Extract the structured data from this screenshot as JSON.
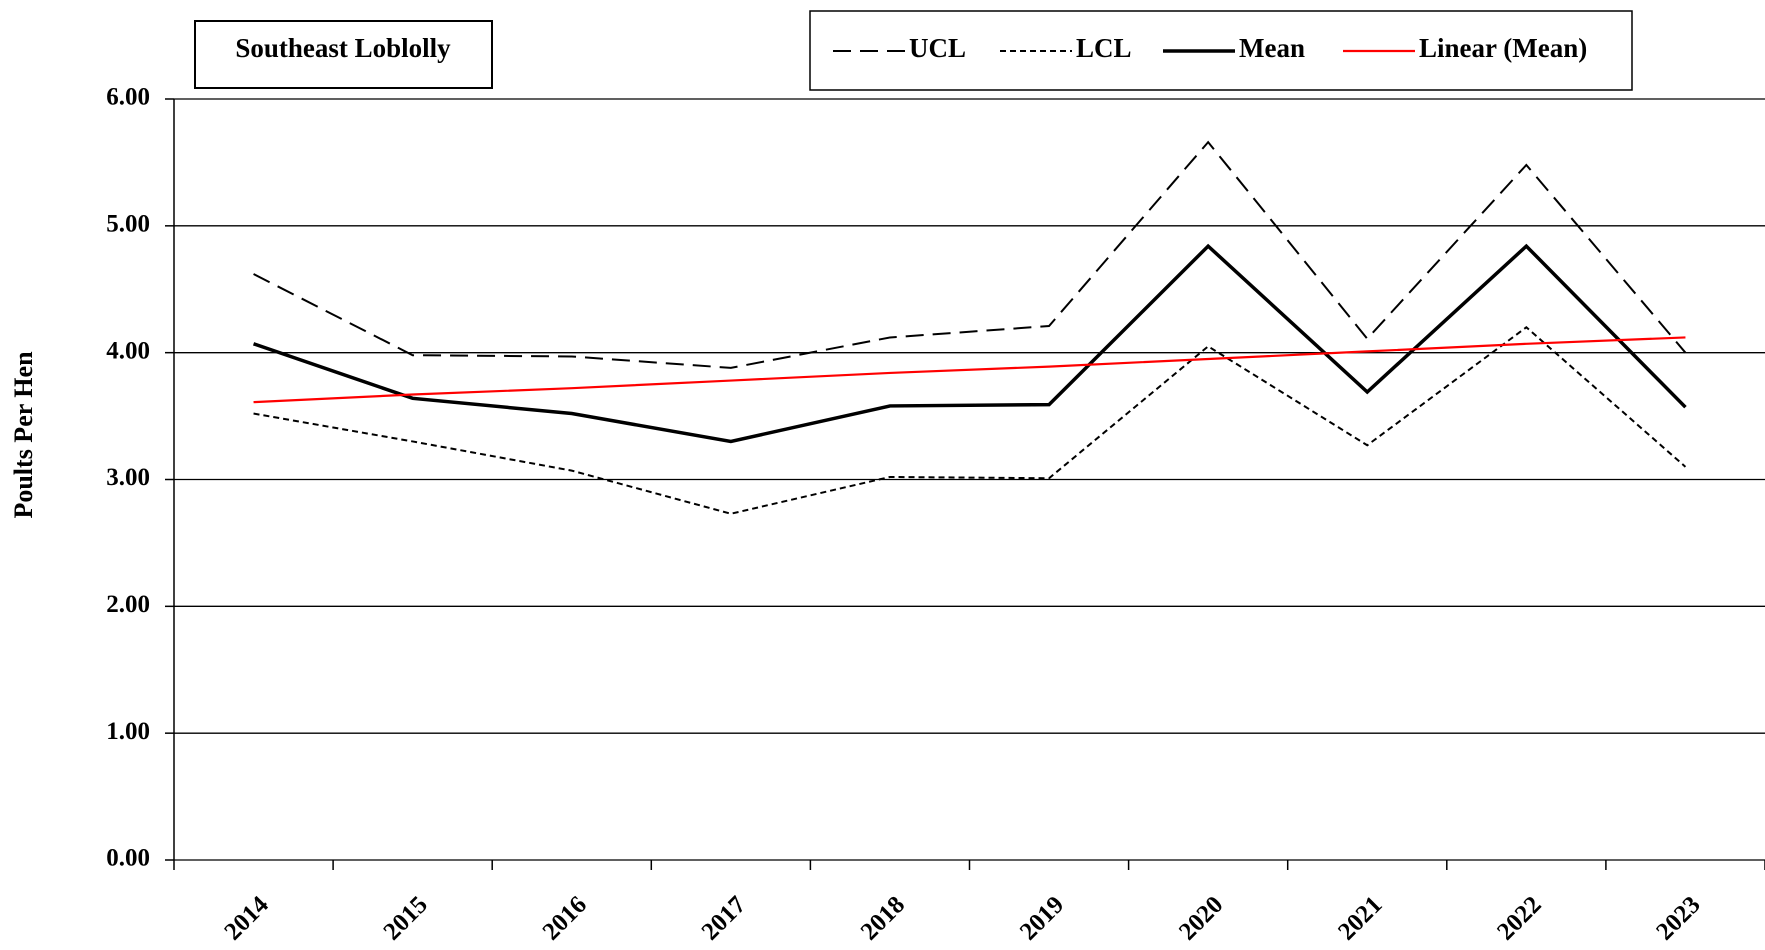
{
  "chart_data": {
    "type": "line",
    "title": "Southeast Loblolly",
    "y_label": "Poults Per Hen",
    "categories": [
      "2014",
      "2015",
      "2016",
      "2017",
      "2018",
      "2019",
      "2020",
      "2021",
      "2022",
      "2023"
    ],
    "series": [
      {
        "name": "UCL",
        "color": "#000000",
        "dash": "dashed",
        "values": [
          4.62,
          3.98,
          3.97,
          3.88,
          4.12,
          4.21,
          5.66,
          4.11,
          5.48,
          4.0
        ]
      },
      {
        "name": "LCL",
        "color": "#000000",
        "dash": "dotted",
        "values": [
          3.52,
          3.3,
          3.07,
          2.73,
          3.02,
          3.01,
          4.05,
          3.27,
          4.2,
          3.1
        ]
      },
      {
        "name": "Mean",
        "color": "#000000",
        "dash": "solid",
        "values": [
          4.07,
          3.64,
          3.52,
          3.3,
          3.58,
          3.59,
          4.84,
          3.69,
          4.84,
          3.57
        ]
      },
      {
        "name": "Linear (Mean)",
        "color": "#ff0000",
        "dash": "solid",
        "values": [
          3.61,
          3.67,
          3.72,
          3.78,
          3.84,
          3.89,
          3.95,
          4.01,
          4.07,
          4.12
        ]
      }
    ],
    "ylim": [
      0,
      6
    ],
    "yticks": [
      {
        "value": 0,
        "label": "0.00"
      },
      {
        "value": 1,
        "label": "1.00"
      },
      {
        "value": 2,
        "label": "2.00"
      },
      {
        "value": 3,
        "label": "3.00"
      },
      {
        "value": 4,
        "label": "4.00"
      },
      {
        "value": 5,
        "label": "5.00"
      },
      {
        "value": 6,
        "label": "6.00"
      }
    ],
    "grid": true,
    "legend": "top"
  }
}
